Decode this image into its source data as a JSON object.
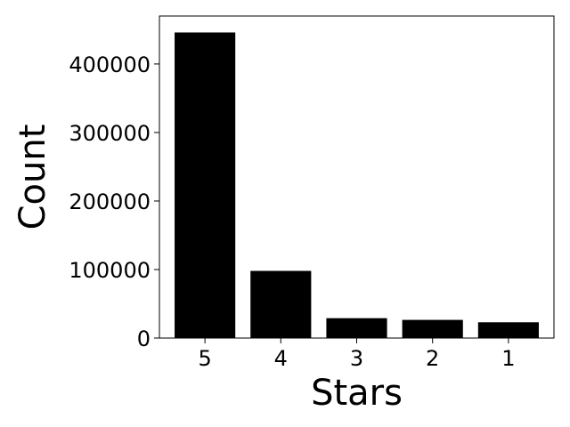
{
  "chart_data": {
    "type": "bar",
    "title": "",
    "xlabel": "Stars",
    "ylabel": "Count",
    "categories": [
      "5",
      "4",
      "3",
      "2",
      "1"
    ],
    "values": [
      446000,
      98000,
      29000,
      26500,
      23000
    ],
    "ylim": [
      0,
      470000
    ],
    "yticks": [
      0,
      100000,
      200000,
      300000,
      400000
    ],
    "ytick_labels": [
      "0",
      "100000",
      "200000",
      "300000",
      "400000"
    ],
    "grid": false,
    "legend": "none",
    "bar_color": "#000000"
  }
}
